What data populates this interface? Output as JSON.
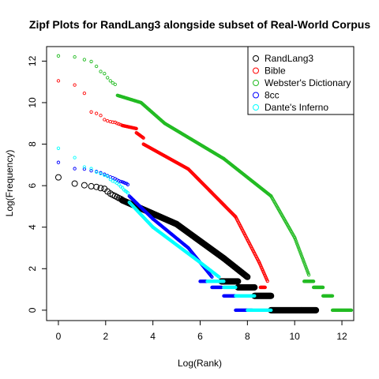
{
  "chart_data": {
    "type": "scatter",
    "title": "Zipf Plots for RandLang3 alongside subset of Real-World Corpus",
    "xlabel": "Log(Rank)",
    "ylabel": "Log(Frequency)",
    "xlim": [
      -0.5,
      12.5
    ],
    "ylim": [
      -0.5,
      12.7
    ],
    "x_ticks": [
      0,
      2,
      4,
      6,
      8,
      10,
      12
    ],
    "y_ticks": [
      0,
      2,
      4,
      6,
      8,
      10,
      12
    ],
    "legend_position": "top-right",
    "series": [
      {
        "name": "RandLang3",
        "color": "#000000",
        "marker": "large-open-circle",
        "points": [
          [
            0,
            6.4
          ],
          [
            0.69,
            6.1
          ],
          [
            1.1,
            6.02
          ],
          [
            1.39,
            5.97
          ],
          [
            1.61,
            5.94
          ],
          [
            1.79,
            5.88
          ],
          [
            1.95,
            5.85
          ],
          [
            2.08,
            5.72
          ],
          [
            2.2,
            5.62
          ],
          [
            2.3,
            5.55
          ],
          [
            2.4,
            5.5
          ],
          [
            2.48,
            5.45
          ],
          [
            2.56,
            5.4
          ],
          [
            2.64,
            5.36
          ],
          [
            2.71,
            5.31
          ]
        ],
        "segments": [
          {
            "x_start": 2.7,
            "x_end": 5.0,
            "y_start": 5.3,
            "y_end": 4.15
          },
          {
            "x_start": 5.0,
            "x_end": 7.0,
            "y_start": 4.15,
            "y_end": 2.5
          },
          {
            "x_start": 7.0,
            "x_end": 8.0,
            "y_start": 2.5,
            "y_end": 1.6
          }
        ],
        "steps": [
          {
            "x_start": 6.9,
            "x_end": 7.6,
            "y": 1.39
          },
          {
            "x_start": 7.6,
            "x_end": 8.3,
            "y": 1.1
          },
          {
            "x_start": 8.3,
            "x_end": 9.0,
            "y": 0.69
          },
          {
            "x_start": 9.0,
            "x_end": 10.9,
            "y": 0
          }
        ]
      },
      {
        "name": "Bible",
        "color": "#ff0000",
        "marker": "small-open-circle",
        "points": [
          [
            0,
            11.05
          ],
          [
            0.69,
            10.85
          ],
          [
            1.1,
            10.45
          ],
          [
            1.39,
            9.55
          ],
          [
            1.61,
            9.48
          ],
          [
            1.79,
            9.38
          ],
          [
            1.95,
            9.18
          ],
          [
            2.08,
            9.12
          ],
          [
            2.2,
            9.08
          ],
          [
            2.3,
            9.06
          ],
          [
            2.4,
            9.05
          ],
          [
            2.48,
            9.0
          ],
          [
            2.56,
            8.97
          ],
          [
            2.64,
            8.94
          ]
        ],
        "segments": [
          {
            "x_start": 2.7,
            "x_end": 3.3,
            "y_start": 8.9,
            "y_end": 8.75
          },
          {
            "x_start": 3.3,
            "x_end": 3.6,
            "y_start": 8.55,
            "y_end": 8.3
          },
          {
            "x_start": 3.6,
            "x_end": 5.5,
            "y_start": 8.0,
            "y_end": 6.8
          },
          {
            "x_start": 5.5,
            "x_end": 7.5,
            "y_start": 6.8,
            "y_end": 4.5
          },
          {
            "x_start": 7.5,
            "x_end": 8.5,
            "y_start": 4.5,
            "y_end": 2.3
          },
          {
            "x_start": 8.5,
            "x_end": 8.85,
            "y_start": 2.3,
            "y_end": 1.4
          }
        ],
        "steps": [
          {
            "x_start": 8.55,
            "x_end": 8.75,
            "y": 1.1
          },
          {
            "x_start": 8.75,
            "x_end": 9.05,
            "y": 0.69
          },
          {
            "x_start": 9.05,
            "x_end": 9.62,
            "y": 0
          }
        ]
      },
      {
        "name": "Webster's Dictionary",
        "color": "#22bb22",
        "marker": "small-open-circle",
        "points": [
          [
            0,
            12.25
          ],
          [
            0.69,
            12.2
          ],
          [
            1.1,
            12.07
          ],
          [
            1.39,
            11.98
          ],
          [
            1.61,
            11.75
          ],
          [
            1.79,
            11.5
          ],
          [
            1.95,
            11.4
          ],
          [
            2.08,
            11.2
          ],
          [
            2.2,
            11.05
          ],
          [
            2.3,
            10.95
          ],
          [
            2.4,
            10.88
          ]
        ],
        "segments": [
          {
            "x_start": 2.5,
            "x_end": 3.5,
            "y_start": 10.35,
            "y_end": 10.0
          },
          {
            "x_start": 3.5,
            "x_end": 4.5,
            "y_start": 10.0,
            "y_end": 9.0
          },
          {
            "x_start": 4.5,
            "x_end": 7.0,
            "y_start": 9.0,
            "y_end": 7.3
          },
          {
            "x_start": 7.0,
            "x_end": 9.0,
            "y_start": 7.3,
            "y_end": 5.5
          },
          {
            "x_start": 9.0,
            "x_end": 10.0,
            "y_start": 5.5,
            "y_end": 3.5
          },
          {
            "x_start": 10.0,
            "x_end": 10.6,
            "y_start": 3.5,
            "y_end": 1.7
          }
        ],
        "steps": [
          {
            "x_start": 10.4,
            "x_end": 10.8,
            "y": 1.39
          },
          {
            "x_start": 10.8,
            "x_end": 11.2,
            "y": 1.1
          },
          {
            "x_start": 11.2,
            "x_end": 11.6,
            "y": 0.69
          },
          {
            "x_start": 11.6,
            "x_end": 12.4,
            "y": 0
          }
        ]
      },
      {
        "name": "8cc",
        "color": "#0000ff",
        "marker": "small-open-circle",
        "points": [
          [
            0,
            7.12
          ],
          [
            0.69,
            6.82
          ],
          [
            1.1,
            6.8
          ],
          [
            1.39,
            6.72
          ],
          [
            1.61,
            6.68
          ],
          [
            1.79,
            6.62
          ],
          [
            1.95,
            6.55
          ],
          [
            2.08,
            6.48
          ],
          [
            2.2,
            6.42
          ],
          [
            2.3,
            6.38
          ],
          [
            2.4,
            6.33
          ],
          [
            2.48,
            6.28
          ],
          [
            2.56,
            6.23
          ],
          [
            2.64,
            6.2
          ],
          [
            2.71,
            6.18
          ],
          [
            2.77,
            6.15
          ],
          [
            2.83,
            6.12
          ],
          [
            2.89,
            6.1
          ],
          [
            2.94,
            6.05
          ]
        ],
        "segments": [
          {
            "x_start": 3.0,
            "x_end": 4.0,
            "y_start": 5.5,
            "y_end": 4.4
          },
          {
            "x_start": 4.0,
            "x_end": 5.5,
            "y_start": 4.4,
            "y_end": 3.0
          },
          {
            "x_start": 5.5,
            "x_end": 6.5,
            "y_start": 3.0,
            "y_end": 1.6
          }
        ],
        "steps": [
          {
            "x_start": 6.0,
            "x_end": 6.5,
            "y": 1.39
          },
          {
            "x_start": 6.5,
            "x_end": 6.9,
            "y": 1.1
          },
          {
            "x_start": 7.0,
            "x_end": 7.5,
            "y": 0.69
          },
          {
            "x_start": 7.5,
            "x_end": 8.2,
            "y": 0
          }
        ]
      },
      {
        "name": "Dante's Inferno",
        "color": "#00ffff",
        "marker": "small-open-circle",
        "points": [
          [
            0,
            7.8
          ],
          [
            0.69,
            7.35
          ],
          [
            1.1,
            6.9
          ],
          [
            1.39,
            6.82
          ],
          [
            1.61,
            6.65
          ],
          [
            1.79,
            6.58
          ],
          [
            1.95,
            6.5
          ],
          [
            2.08,
            6.45
          ],
          [
            2.2,
            6.3
          ],
          [
            2.3,
            6.22
          ],
          [
            2.4,
            6.18
          ],
          [
            2.48,
            6.12
          ],
          [
            2.56,
            6.05
          ],
          [
            2.64,
            5.95
          ],
          [
            2.71,
            5.9
          ],
          [
            2.77,
            5.8
          ],
          [
            2.83,
            5.75
          ],
          [
            2.89,
            5.7
          ],
          [
            2.94,
            5.65
          ]
        ],
        "segments": [
          {
            "x_start": 3.0,
            "x_end": 4.0,
            "y_start": 5.2,
            "y_end": 4.0
          },
          {
            "x_start": 4.0,
            "x_end": 6.0,
            "y_start": 4.0,
            "y_end": 2.3
          },
          {
            "x_start": 6.0,
            "x_end": 6.8,
            "y_start": 2.3,
            "y_end": 1.6
          }
        ],
        "steps": [
          {
            "x_start": 6.3,
            "x_end": 7.0,
            "y": 1.39
          },
          {
            "x_start": 7.0,
            "x_end": 7.5,
            "y": 1.1
          },
          {
            "x_start": 7.5,
            "x_end": 8.3,
            "y": 0.69
          },
          {
            "x_start": 8.0,
            "x_end": 9.0,
            "y": 0
          }
        ]
      }
    ]
  }
}
